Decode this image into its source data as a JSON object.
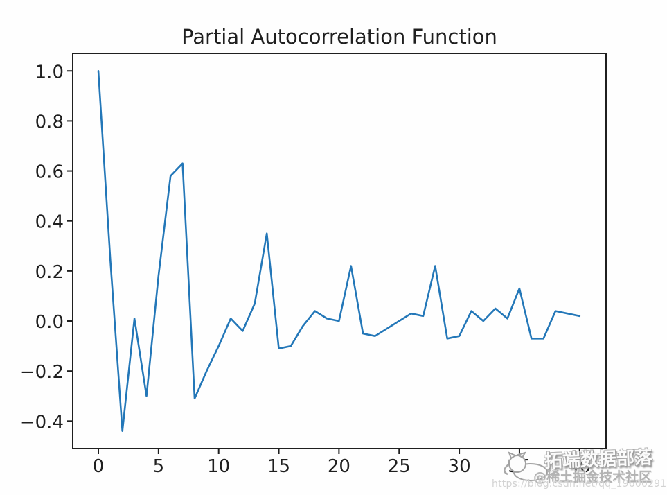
{
  "chart_data": {
    "type": "line",
    "title": "Partial Autocorrelation Function",
    "xlabel": "",
    "ylabel": "",
    "grid": false,
    "legend": null,
    "xlim": [
      -2.13,
      42.2
    ],
    "ylim": [
      -0.51,
      1.07
    ],
    "xticks": {
      "values": [
        0,
        5,
        10,
        15,
        20,
        25,
        30,
        35,
        40
      ],
      "labels": [
        "0",
        "5",
        "10",
        "15",
        "20",
        "25",
        "30",
        "35",
        "40"
      ]
    },
    "yticks": {
      "values": [
        1.0,
        0.8,
        0.6,
        0.4,
        0.2,
        0.0,
        -0.2,
        -0.4
      ],
      "labels": [
        "1.0",
        "0.8",
        "0.6",
        "0.4",
        "0.2",
        "0.0",
        "−0.2",
        "−0.4"
      ]
    },
    "series": [
      {
        "name": "pacf",
        "color": "#2377b8",
        "x": [
          0,
          1,
          2,
          3,
          4,
          5,
          6,
          7,
          8,
          9,
          10,
          11,
          12,
          13,
          14,
          15,
          16,
          17,
          18,
          19,
          20,
          21,
          22,
          23,
          24,
          25,
          26,
          27,
          28,
          29,
          30,
          31,
          32,
          33,
          34,
          35,
          36,
          37,
          38,
          39,
          40
        ],
        "values": [
          1.0,
          0.24,
          -0.44,
          0.01,
          -0.3,
          0.18,
          0.58,
          0.63,
          -0.31,
          -0.2,
          -0.1,
          0.01,
          -0.04,
          0.07,
          0.35,
          -0.11,
          -0.1,
          -0.02,
          0.04,
          0.01,
          0.0,
          0.22,
          -0.05,
          -0.06,
          -0.03,
          0.0,
          0.03,
          0.02,
          0.22,
          -0.07,
          -0.06,
          0.04,
          0.0,
          0.05,
          0.01,
          0.13,
          -0.07,
          -0.07,
          0.04,
          0.03,
          0.02
        ]
      }
    ]
  },
  "watermark": {
    "logo": "cat-logo",
    "brand_text": "拓端数据部落",
    "community_text": "@稀土掘金技术社区",
    "url_text": "https://blog.csdn.net/qq_19600291"
  },
  "style": {
    "line_color": "#2377b8",
    "axis_color": "#1f1f1f",
    "background": "#fefefe"
  }
}
